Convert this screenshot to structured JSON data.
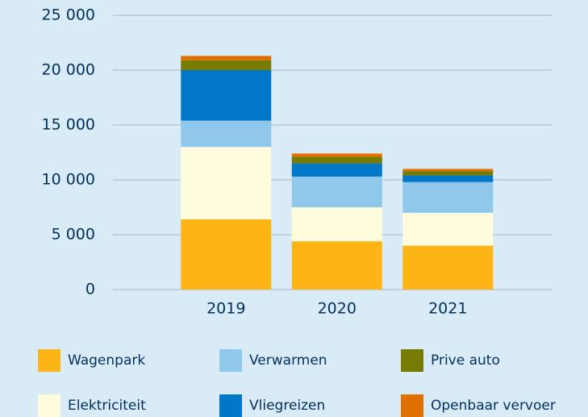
{
  "chart_data": {
    "type": "stacked_bar",
    "categories": [
      "2019",
      "2020",
      "2021"
    ],
    "series": [
      {
        "name": "Wagenpark",
        "color": "#fdb515",
        "values": [
          6400,
          4400,
          4000
        ]
      },
      {
        "name": "Elektriciteit",
        "color": "#fffbdd",
        "values": [
          6600,
          3100,
          3000
        ]
      },
      {
        "name": "Verwarmen",
        "color": "#8fc8ea",
        "values": [
          2400,
          2800,
          2800
        ]
      },
      {
        "name": "Vliegreizen",
        "color": "#0077c8",
        "values": [
          4600,
          1200,
          600
        ]
      },
      {
        "name": "Prive auto",
        "color": "#777b00",
        "values": [
          900,
          600,
          400
        ]
      },
      {
        "name": "Openbaar vervoer",
        "color": "#e17000",
        "values": [
          400,
          300,
          200
        ]
      }
    ],
    "ylim": [
      0,
      25000
    ],
    "yticks": [
      0,
      {
        "value": 5000,
        "label": "5 000"
      },
      {
        "value": 10000,
        "label": "10 000"
      },
      {
        "value": 15000,
        "label": "15 000"
      },
      {
        "value": 20000,
        "label": "20 000"
      },
      {
        "value": 25000,
        "label": "25 000"
      }
    ],
    "grid": true
  }
}
